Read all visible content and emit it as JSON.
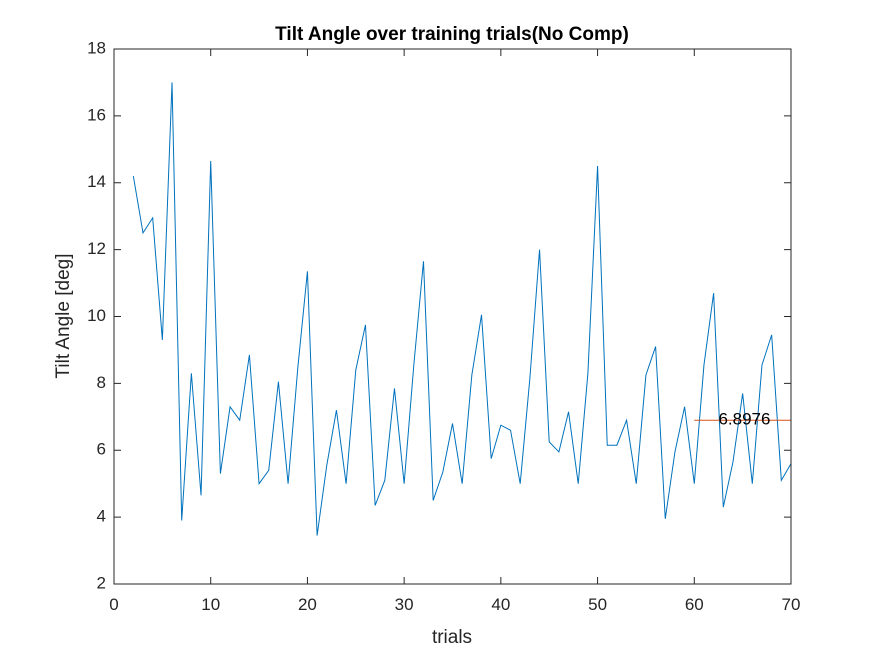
{
  "chart_data": {
    "type": "line",
    "title": "Tilt Angle over training trials(No Comp)",
    "xlabel": "trials",
    "ylabel": "Tilt Angle [deg]",
    "xlim": [
      0,
      70
    ],
    "ylim": [
      2,
      18
    ],
    "xticks": [
      "0",
      "10",
      "20",
      "30",
      "40",
      "50",
      "60",
      "70"
    ],
    "yticks": [
      "2",
      "4",
      "6",
      "8",
      "10",
      "12",
      "14",
      "16",
      "18"
    ],
    "grid": false,
    "series": [
      {
        "color": "#0072BD",
        "x": [
          2,
          3,
          4,
          5,
          6,
          7,
          8,
          9,
          10,
          11,
          12,
          13,
          14,
          15,
          16,
          17,
          18,
          19,
          20,
          21,
          22,
          23,
          24,
          25,
          26,
          27,
          28,
          29,
          30,
          31,
          32,
          33,
          34,
          35,
          36,
          37,
          38,
          39,
          40,
          41,
          42,
          43,
          44,
          45,
          46,
          47,
          48,
          49,
          50,
          51,
          52,
          53,
          54,
          55,
          56,
          57,
          58,
          59,
          60,
          61,
          62,
          63,
          64,
          65,
          66,
          67,
          68,
          69,
          70
        ],
        "y": [
          14.2,
          12.5,
          12.95,
          9.3,
          17.0,
          3.9,
          8.3,
          4.65,
          14.65,
          5.3,
          7.3,
          6.9,
          8.85,
          5.0,
          5.4,
          8.05,
          5.0,
          8.45,
          11.35,
          3.45,
          5.55,
          7.2,
          5.0,
          8.4,
          9.75,
          4.35,
          5.1,
          7.85,
          5.0,
          8.55,
          11.65,
          4.5,
          5.35,
          6.8,
          5.0,
          8.25,
          10.05,
          5.75,
          6.75,
          6.6,
          5.0,
          8.15,
          12.0,
          6.25,
          5.95,
          7.15,
          5.0,
          8.3,
          14.5,
          6.15,
          6.15,
          6.9,
          5.0,
          8.25,
          9.1,
          3.95,
          5.95,
          7.3,
          5.0,
          8.55,
          10.7,
          4.3,
          5.65,
          7.7,
          5.0,
          8.55,
          9.45,
          5.1,
          5.6
        ]
      },
      {
        "color": "#D95319",
        "x": [
          60,
          70
        ],
        "y": [
          6.8976,
          6.8976
        ]
      }
    ],
    "annotation": {
      "text": "6.8976",
      "x": 62.5,
      "y": 6.8976
    }
  }
}
